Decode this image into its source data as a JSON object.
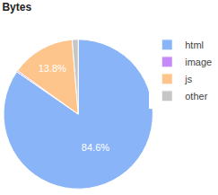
{
  "chart_data": {
    "type": "pie",
    "title": "Bytes",
    "categories": [
      "html",
      "image",
      "js",
      "other"
    ],
    "values": [
      84.6,
      0.3,
      13.8,
      1.3
    ],
    "value_labels": [
      "84.6%",
      null,
      "13.8%",
      null
    ],
    "colors": [
      "#8ab4f8",
      "#c58af9",
      "#fdc58c",
      "#c6c6c6"
    ],
    "data_labels": true,
    "legend": "upper right"
  }
}
